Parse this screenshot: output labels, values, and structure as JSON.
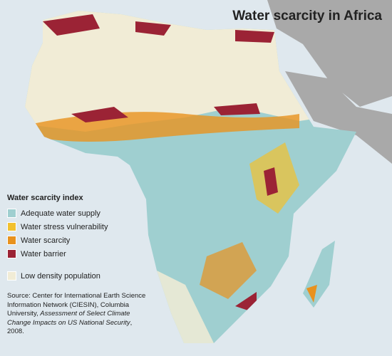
{
  "title": "Water scarcity in Africa",
  "legend": {
    "title": "Water scarcity index",
    "items": [
      {
        "label": "Adequate water supply",
        "color": "#9fcfd0"
      },
      {
        "label": "Water stress vulnerability",
        "color": "#f2c12e"
      },
      {
        "label": "Water scarcity",
        "color": "#e8921e"
      },
      {
        "label": "Water barrier",
        "color": "#9b2335"
      },
      {
        "label": "Low density population",
        "color": "#f1ecd6"
      }
    ]
  },
  "source": {
    "prefix": "Source: Center for International Earth Science Information Network (CIESIN), Columbia University, ",
    "italic": "Assessment of Select Climate Change Impacts on US National Security",
    "suffix": ", 2008."
  }
}
